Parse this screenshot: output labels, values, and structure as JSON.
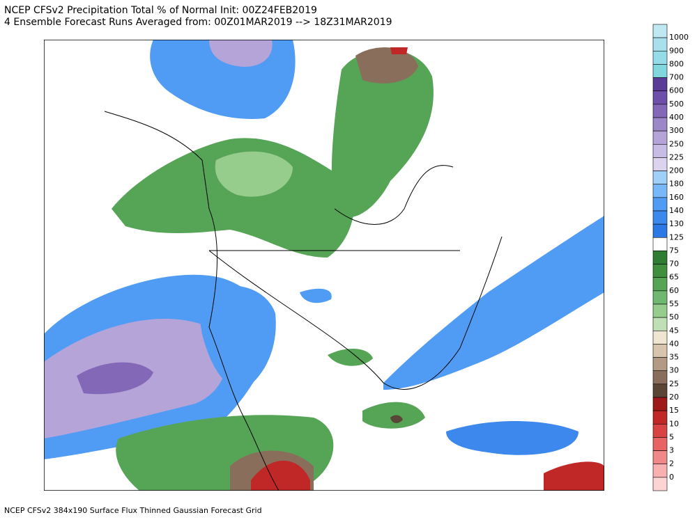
{
  "header": {
    "title": "NCEP CFSv2 Precipitation Total % of Normal Init: 00Z24FEB2019",
    "subtitle": "4 Ensemble Forecast Runs Averaged from: 00Z01MAR2019 --> 18Z31MAR2019"
  },
  "legend": {
    "levels": [
      1000,
      900,
      800,
      700,
      600,
      500,
      400,
      300,
      250,
      225,
      200,
      180,
      160,
      140,
      130,
      125,
      75,
      70,
      65,
      60,
      55,
      50,
      45,
      40,
      35,
      30,
      25,
      20,
      15,
      10,
      5,
      3,
      2,
      0
    ],
    "colors": [
      "#c0e8f0",
      "#a8e0ee",
      "#96dce8",
      "#80d8dc",
      "#5a3c96",
      "#6e50aa",
      "#8468b8",
      "#9c88c8",
      "#b4a4d8",
      "#c8bce4",
      "#dcd4ee",
      "#a0d0f8",
      "#78b8f8",
      "#509cf4",
      "#3c88ec",
      "#2c78e4",
      "#ffffff",
      "#2e7d32",
      "#3f8f3f",
      "#56a456",
      "#70b870",
      "#96cc8c",
      "#bfe0b4",
      "#efe6d2",
      "#d6c4ac",
      "#b29a84",
      "#8a6e5c",
      "#5a4636",
      "#9e1a1a",
      "#c02828",
      "#d84444",
      "#e86464",
      "#f08888",
      "#f8b0b0",
      "#fcd4d4"
    ]
  },
  "footer": {
    "text": "NCEP CFSv2 384x190 Surface Flux Thinned Gaussian Forecast Grid"
  }
}
